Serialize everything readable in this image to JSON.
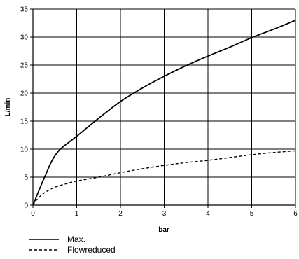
{
  "chart_data": {
    "type": "line",
    "title": "",
    "xlabel": "bar",
    "ylabel": "L/min",
    "xlim": [
      0,
      6
    ],
    "ylim": [
      0,
      35
    ],
    "x_ticks": [
      0,
      1,
      2,
      3,
      4,
      5,
      6
    ],
    "y_ticks": [
      0,
      5,
      10,
      15,
      20,
      25,
      30,
      35
    ],
    "grid": true,
    "legend_position": "bottom-left",
    "series": [
      {
        "name": "Max.",
        "line_style": "solid",
        "color": "#000000",
        "x": [
          0,
          0.1,
          0.2,
          0.3,
          0.4,
          0.5,
          0.6,
          0.7,
          0.8,
          1.0,
          1.5,
          2.0,
          2.5,
          3.0,
          3.5,
          4.0,
          4.5,
          5.0,
          5.5,
          6.0
        ],
        "y": [
          0,
          1.9,
          3.8,
          5.6,
          7.4,
          8.8,
          9.8,
          10.5,
          11.1,
          12.3,
          15.5,
          18.5,
          20.9,
          23.0,
          24.9,
          26.6,
          28.2,
          29.9,
          31.4,
          33.0
        ]
      },
      {
        "name": "Flowreduced",
        "line_style": "dashed",
        "color": "#000000",
        "x": [
          0,
          0.1,
          0.2,
          0.3,
          0.5,
          0.75,
          1.0,
          1.5,
          2.0,
          2.5,
          3.0,
          3.5,
          4.0,
          4.5,
          5.0,
          5.5,
          6.0
        ],
        "y": [
          0,
          1.1,
          1.8,
          2.4,
          3.2,
          3.8,
          4.3,
          5.0,
          5.8,
          6.5,
          7.1,
          7.6,
          8.0,
          8.5,
          9.0,
          9.4,
          9.7
        ]
      }
    ]
  }
}
